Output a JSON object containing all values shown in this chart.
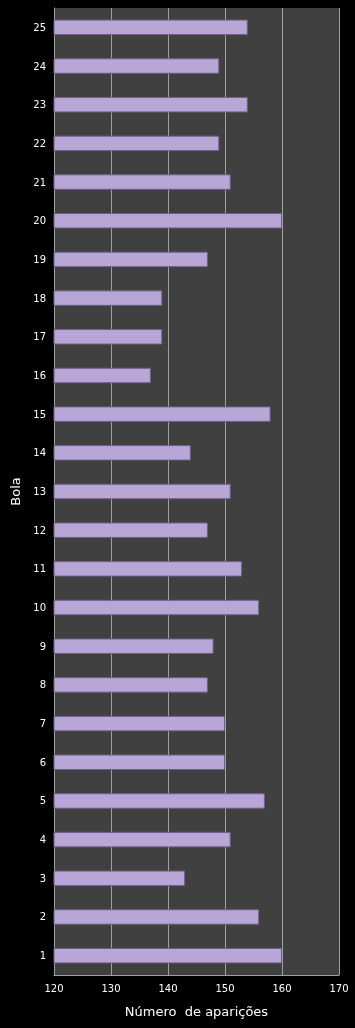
{
  "chart_data": {
    "type": "bar",
    "orientation": "horizontal",
    "xlabel": "Número  de aparições",
    "ylabel": "Bola",
    "categories": [
      "25",
      "24",
      "23",
      "22",
      "21",
      "20",
      "19",
      "18",
      "17",
      "16",
      "15",
      "14",
      "13",
      "12",
      "11",
      "10",
      "9",
      "8",
      "7",
      "6",
      "5",
      "4",
      "3",
      "2",
      "1"
    ],
    "values": [
      154,
      149,
      154,
      149,
      151,
      160,
      147,
      139,
      139,
      137,
      158,
      144,
      151,
      147,
      153,
      156,
      148,
      147,
      150,
      150,
      157,
      151,
      143,
      156,
      160
    ],
    "color": "#b8a6d6",
    "xlim": [
      120,
      170
    ],
    "xticks": [
      120,
      130,
      140,
      150,
      160,
      170
    ],
    "grid": "x"
  }
}
